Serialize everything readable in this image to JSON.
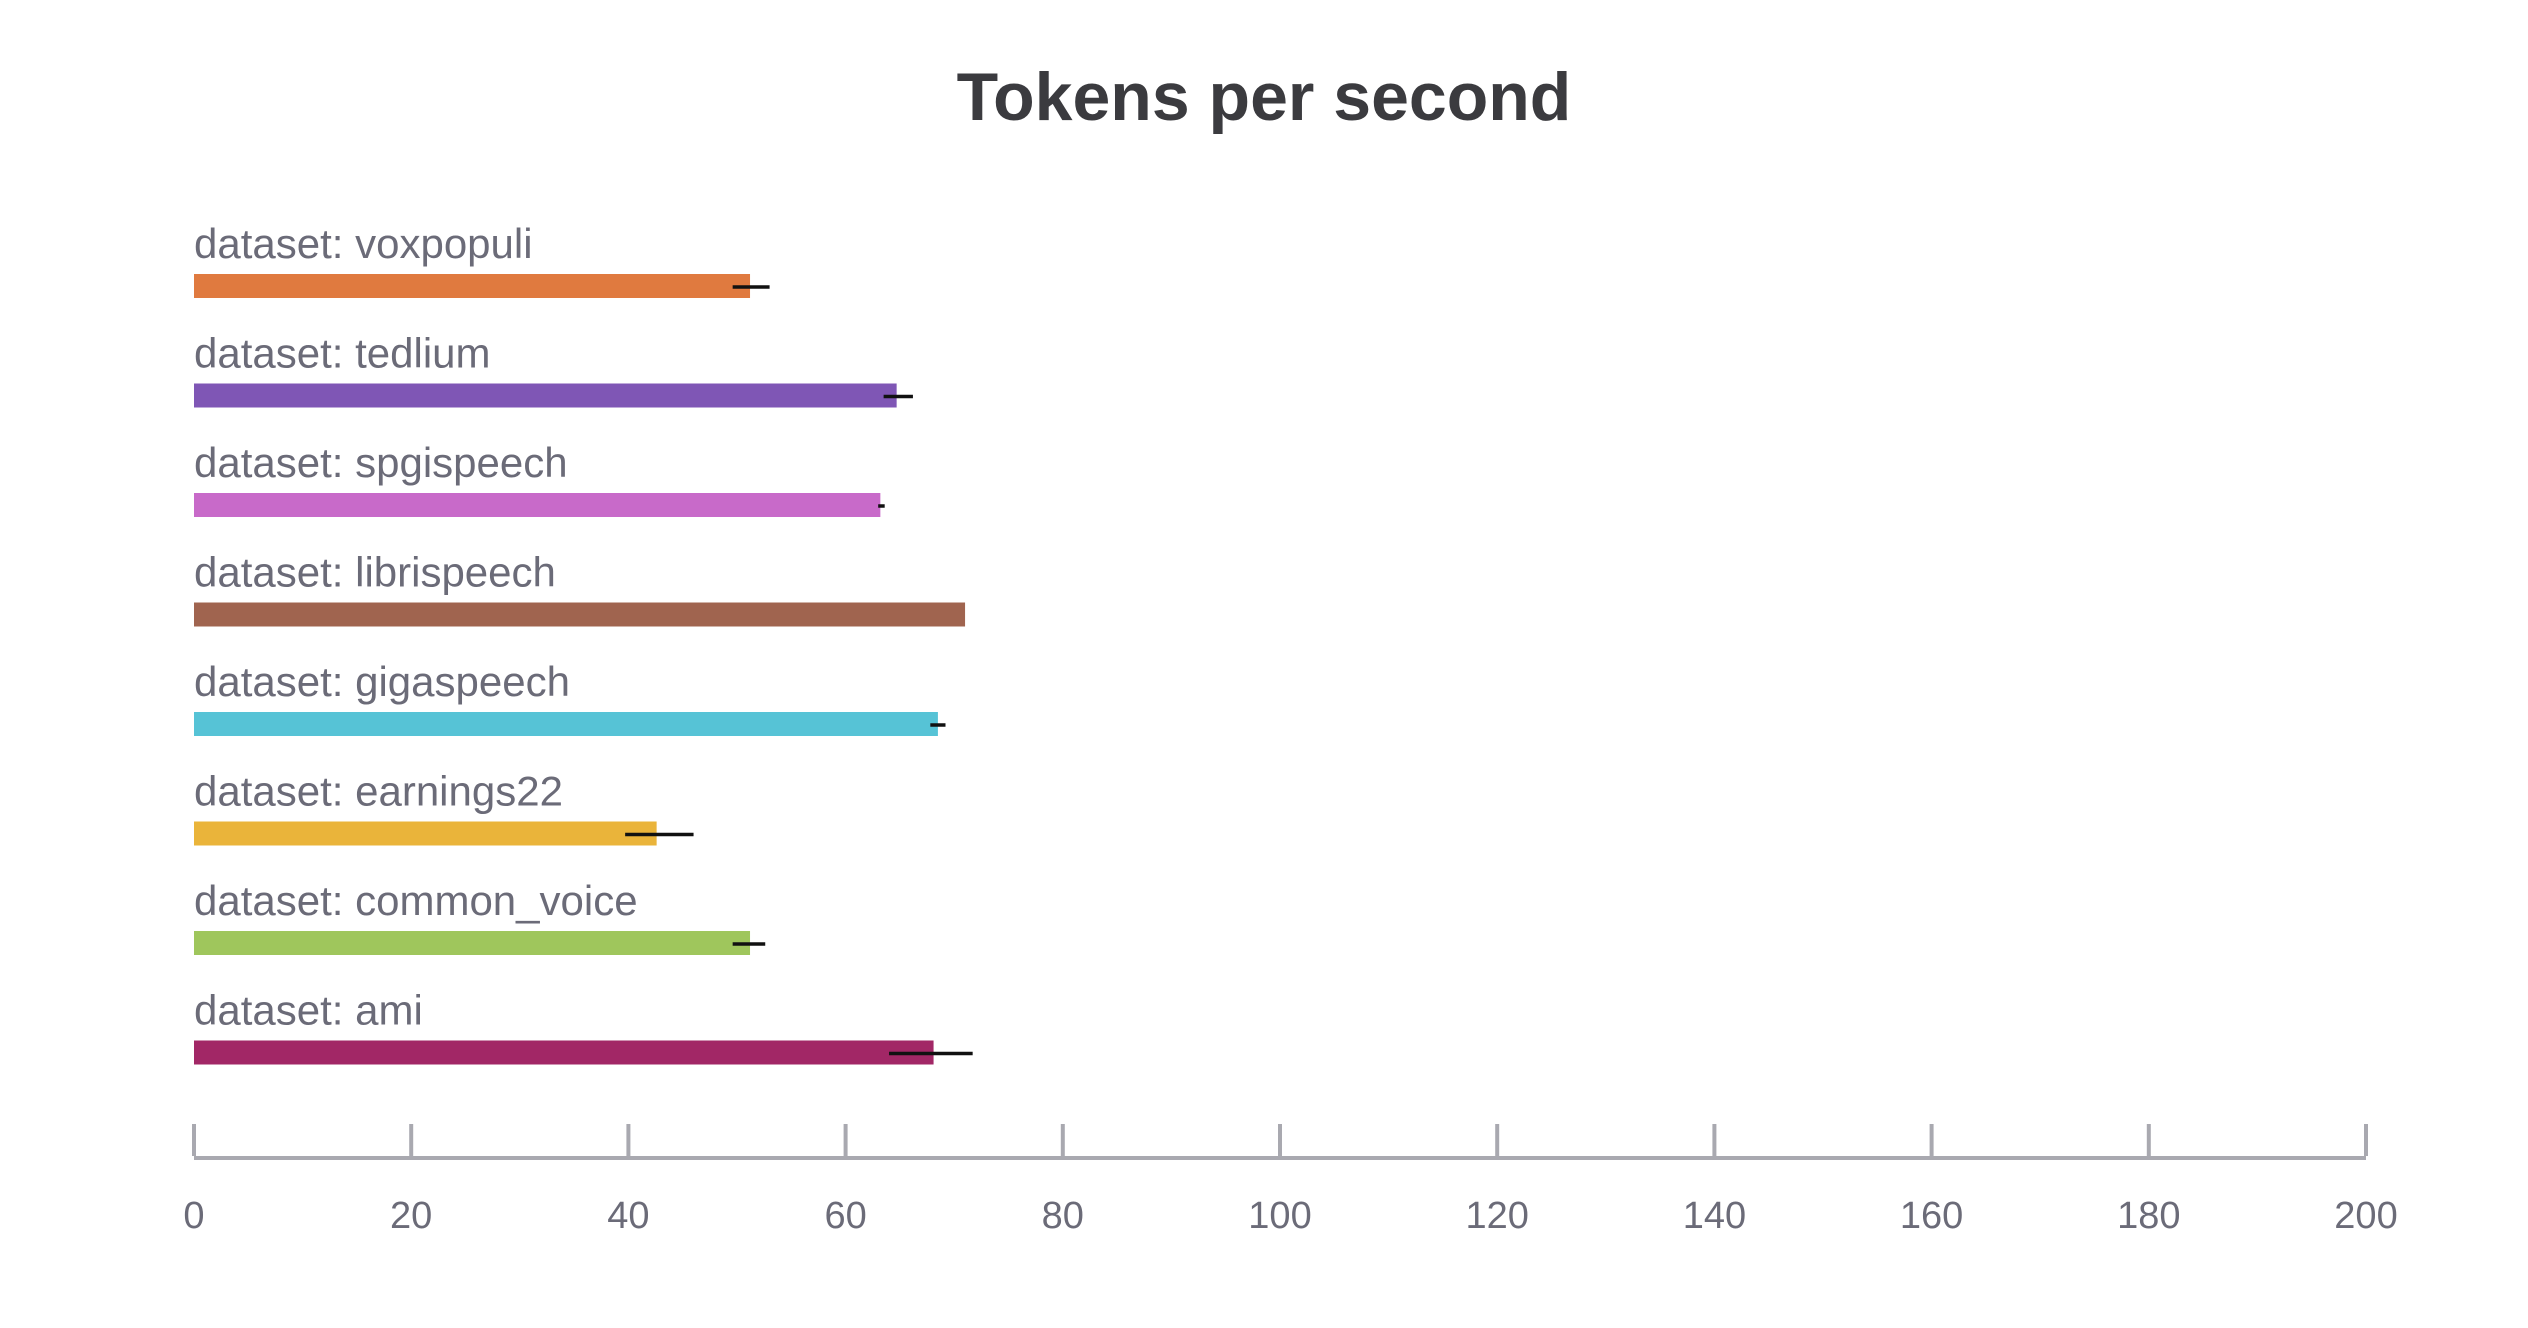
{
  "chart_data": {
    "type": "bar",
    "orientation": "horizontal",
    "title": "Tokens per second",
    "xlabel": "",
    "ylabel": "",
    "xlim": [
      0,
      200
    ],
    "x_ticks": [
      0,
      20,
      40,
      60,
      80,
      100,
      120,
      140,
      160,
      180,
      200
    ],
    "grid": false,
    "categories": [
      "dataset: voxpopuli",
      "dataset: tedlium",
      "dataset: spgispeech",
      "dataset: librispeech",
      "dataset: gigaspeech",
      "dataset: earnings22",
      "dataset: common_voice",
      "dataset: ami"
    ],
    "values": [
      51.2,
      64.7,
      63.2,
      71.0,
      68.5,
      42.6,
      51.2,
      68.1
    ],
    "error_low": [
      49.6,
      63.5,
      63.0,
      71.0,
      67.8,
      39.7,
      49.6,
      64.0
    ],
    "error_high": [
      53.0,
      66.2,
      63.6,
      71.0,
      69.2,
      46.0,
      52.6,
      71.7
    ],
    "colors": [
      "#e07a3f",
      "#7f56b5",
      "#c86ac9",
      "#a0644f",
      "#56c3d6",
      "#eab43a",
      "#9fc65c",
      "#a22766"
    ]
  }
}
